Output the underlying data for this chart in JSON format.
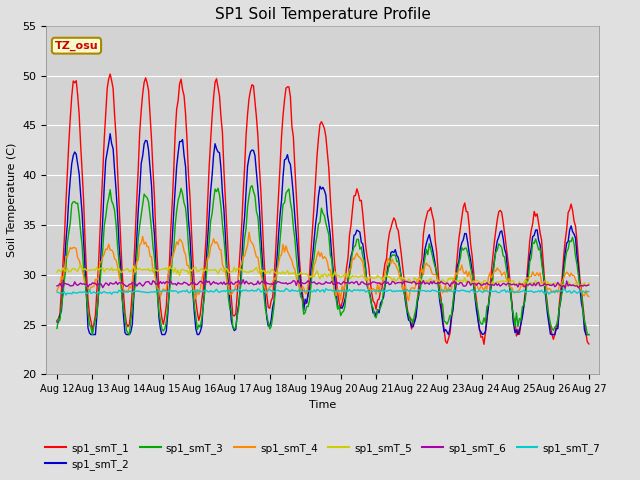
{
  "title": "SP1 Soil Temperature Profile",
  "xlabel": "Time",
  "ylabel": "Soil Temperature (C)",
  "ylim": [
    20,
    55
  ],
  "background_color": "#e0e0e0",
  "plot_bg_color": "#d3d3d3",
  "annotation_text": "TZ_osu",
  "annotation_bg": "#ffffcc",
  "annotation_fg": "#cc0000",
  "annotation_border": "#aa8800",
  "series_colors": {
    "sp1_smT_1": "#ff0000",
    "sp1_smT_2": "#0000cc",
    "sp1_smT_3": "#00aa00",
    "sp1_smT_4": "#ff8800",
    "sp1_smT_5": "#cccc00",
    "sp1_smT_6": "#aa00aa",
    "sp1_smT_7": "#00cccc"
  },
  "xtick_labels": [
    "Aug 12",
    "Aug 13",
    "Aug 14",
    "Aug 15",
    "Aug 16",
    "Aug 17",
    "Aug 18",
    "Aug 19",
    "Aug 20",
    "Aug 21",
    "Aug 22",
    "Aug 23",
    "Aug 24",
    "Aug 25",
    "Aug 26",
    "Aug 27"
  ],
  "ytick_labels": [
    20,
    25,
    30,
    35,
    40,
    45,
    50,
    55
  ],
  "n_points": 361,
  "days": 15
}
